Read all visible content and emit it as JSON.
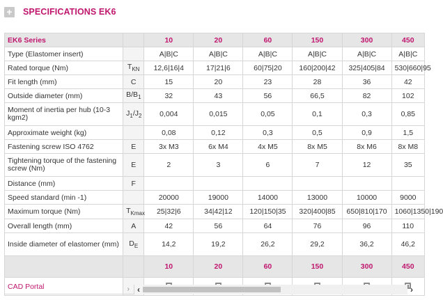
{
  "header": {
    "title": "SPECIFICATIONS EK6",
    "toggle_icon": "plus-icon"
  },
  "table": {
    "series_label": "EK6 Series",
    "sizes": [
      "10",
      "20",
      "60",
      "150",
      "300",
      "450"
    ],
    "rows": [
      {
        "name": "Type (Elastomer insert)",
        "symbol": "",
        "values": [
          "A|B|C",
          "A|B|C",
          "A|B|C",
          "A|B|C",
          "A|B|C",
          "A|B|C"
        ]
      },
      {
        "name": "Rated torque (Nm)",
        "symbol": "TKN",
        "values": [
          "12,6|16|4",
          "17|21|6",
          "60|75|20",
          "160|200|42",
          "325|405|84",
          "530|660|95"
        ]
      },
      {
        "name": "Fit length (mm)",
        "symbol": "C",
        "values": [
          "15",
          "20",
          "23",
          "28",
          "36",
          "42"
        ]
      },
      {
        "name": "Outside diameter (mm)",
        "symbol": "B/B1",
        "values": [
          "32",
          "43",
          "56",
          "66,5",
          "82",
          "102"
        ]
      },
      {
        "name": "Moment of inertia per hub (10-3 kgm2)",
        "symbol": "J1/J2",
        "values": [
          "0,004",
          "0,015",
          "0,05",
          "0,1",
          "0,3",
          "0,85"
        ]
      },
      {
        "name": "Approximate weight (kg)",
        "symbol": "",
        "values": [
          "0,08",
          "0,12",
          "0,3",
          "0,5",
          "0,9",
          "1,5"
        ]
      },
      {
        "name": "Fastening screw ISO 4762",
        "symbol": "E",
        "values": [
          "3x M3",
          "6x M4",
          "4x M5",
          "8x M5",
          "8x M6",
          "8x M8"
        ]
      },
      {
        "name": "Tightening torque of the fastening screw (Nm)",
        "symbol": "E",
        "values": [
          "2",
          "3",
          "6",
          "7",
          "12",
          "35"
        ]
      },
      {
        "name": "Distance (mm)",
        "symbol": "F",
        "values": [
          "",
          "",
          "",
          "",
          "",
          ""
        ]
      },
      {
        "name": "Speed standard (min -1)",
        "symbol": "",
        "values": [
          "20000",
          "19000",
          "14000",
          "13000",
          "10000",
          "9000"
        ]
      },
      {
        "name": "Maximum torque (Nm)",
        "symbol": "TKmax",
        "values": [
          "25|32|6",
          "34|42|12",
          "120|150|35",
          "320|400|85",
          "650|810|170",
          "1060|1350|190"
        ]
      },
      {
        "name": "Overall length (mm)",
        "symbol": "A",
        "values": [
          "42",
          "56",
          "64",
          "76",
          "96",
          "110"
        ]
      },
      {
        "name": "Inside diameter of elastomer (mm)",
        "symbol": "DE",
        "values": [
          "14,2",
          "19,2",
          "26,2",
          "29,2",
          "36,2",
          "46,2"
        ]
      }
    ],
    "footer_sizes": [
      "10",
      "20",
      "60",
      "150",
      "300",
      "450"
    ],
    "cad_label": "CAD Portal",
    "cad_icon": "external-link-icon"
  },
  "scrollbar": {
    "thumb_fraction": 0.52,
    "left_arrow": "‹",
    "right_arrow": "›",
    "left_panel_arrow": "›"
  }
}
